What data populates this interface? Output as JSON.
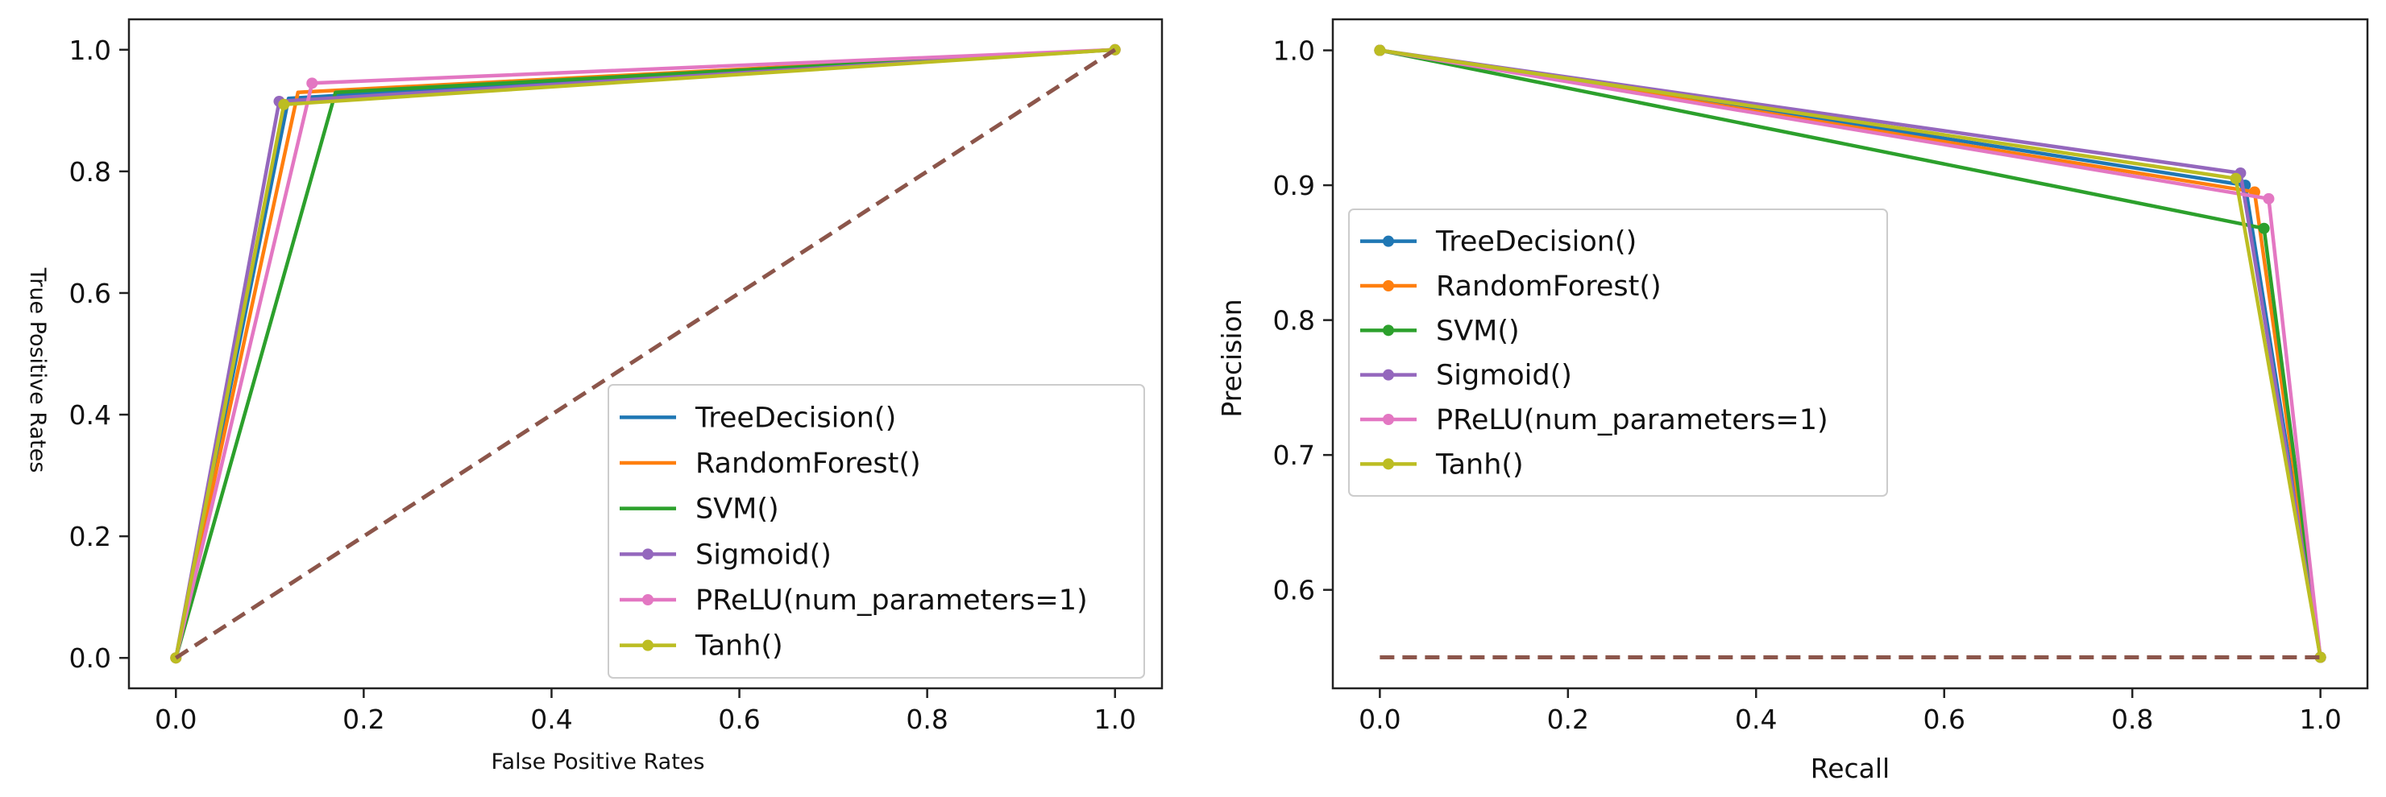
{
  "chart_data": [
    {
      "type": "line",
      "name": "roc",
      "title": "",
      "xlabel": "False Positive Rates",
      "ylabel": "True Positive Rates",
      "xlim": [
        -0.05,
        1.05
      ],
      "ylim": [
        -0.05,
        1.05
      ],
      "xticks": [
        0.0,
        0.2,
        0.4,
        0.6,
        0.8,
        1.0
      ],
      "yticks": [
        0.0,
        0.2,
        0.4,
        0.6,
        0.8,
        1.0
      ],
      "xtick_labels": [
        "0.0",
        "0.2",
        "0.4",
        "0.6",
        "0.8",
        "1.0"
      ],
      "ytick_labels": [
        "0.0",
        "0.2",
        "0.4",
        "0.6",
        "0.8",
        "1.0"
      ],
      "grid": false,
      "legend_position": "lower-right",
      "series": [
        {
          "name": "TreeDecision()",
          "color": "#1f77b4",
          "marker": false,
          "x": [
            0.0,
            0.12,
            1.0
          ],
          "y": [
            0.0,
            0.92,
            1.0
          ]
        },
        {
          "name": "RandomForest()",
          "color": "#ff7f0e",
          "marker": false,
          "x": [
            0.0,
            0.13,
            1.0
          ],
          "y": [
            0.0,
            0.93,
            1.0
          ]
        },
        {
          "name": "SVM()",
          "color": "#2ca02c",
          "marker": false,
          "x": [
            0.0,
            0.17,
            1.0
          ],
          "y": [
            0.0,
            0.93,
            1.0
          ]
        },
        {
          "name": "Sigmoid()",
          "color": "#9467bd",
          "marker": true,
          "x": [
            0.0,
            0.11,
            1.0
          ],
          "y": [
            0.0,
            0.915,
            1.0
          ]
        },
        {
          "name": "PReLU(num_parameters=1)",
          "color": "#e377c2",
          "marker": true,
          "x": [
            0.0,
            0.145,
            1.0
          ],
          "y": [
            0.0,
            0.945,
            1.0
          ]
        },
        {
          "name": "Tanh()",
          "color": "#bcbd22",
          "marker": true,
          "x": [
            0.0,
            0.115,
            1.0
          ],
          "y": [
            0.0,
            0.91,
            1.0
          ]
        }
      ],
      "reference_line": {
        "color": "#8c564b",
        "style": "dashed",
        "x": [
          0.0,
          1.0
        ],
        "y": [
          0.0,
          1.0
        ]
      }
    },
    {
      "type": "line",
      "name": "pr",
      "title": "",
      "xlabel": "Recall",
      "ylabel": "Precision",
      "xlim": [
        -0.05,
        1.05
      ],
      "ylim": [
        0.527,
        1.023
      ],
      "xticks": [
        0.0,
        0.2,
        0.4,
        0.6,
        0.8,
        1.0
      ],
      "yticks": [
        0.6,
        0.7,
        0.8,
        0.9,
        1.0
      ],
      "xtick_labels": [
        "0.0",
        "0.2",
        "0.4",
        "0.6",
        "0.8",
        "1.0"
      ],
      "ytick_labels": [
        "0.6",
        "0.7",
        "0.8",
        "0.9",
        "1.0"
      ],
      "grid": false,
      "legend_position": "center-left",
      "series": [
        {
          "name": "TreeDecision()",
          "color": "#1f77b4",
          "marker": true,
          "x": [
            0.0,
            0.92,
            1.0
          ],
          "y": [
            1.0,
            0.9,
            0.55
          ]
        },
        {
          "name": "RandomForest()",
          "color": "#ff7f0e",
          "marker": true,
          "x": [
            0.0,
            0.93,
            1.0
          ],
          "y": [
            1.0,
            0.895,
            0.55
          ]
        },
        {
          "name": "SVM()",
          "color": "#2ca02c",
          "marker": true,
          "x": [
            0.0,
            0.94,
            1.0
          ],
          "y": [
            1.0,
            0.868,
            0.55
          ]
        },
        {
          "name": "Sigmoid()",
          "color": "#9467bd",
          "marker": true,
          "x": [
            0.0,
            0.915,
            1.0
          ],
          "y": [
            1.0,
            0.909,
            0.55
          ]
        },
        {
          "name": "PReLU(num_parameters=1)",
          "color": "#e377c2",
          "marker": true,
          "x": [
            0.0,
            0.945,
            1.0
          ],
          "y": [
            1.0,
            0.89,
            0.55
          ]
        },
        {
          "name": "Tanh()",
          "color": "#bcbd22",
          "marker": true,
          "x": [
            0.0,
            0.91,
            1.0
          ],
          "y": [
            1.0,
            0.905,
            0.55
          ]
        }
      ],
      "reference_line": {
        "color": "#8c564b",
        "style": "dashed",
        "x": [
          0.0,
          1.0
        ],
        "y": [
          0.55,
          0.55
        ]
      }
    }
  ]
}
